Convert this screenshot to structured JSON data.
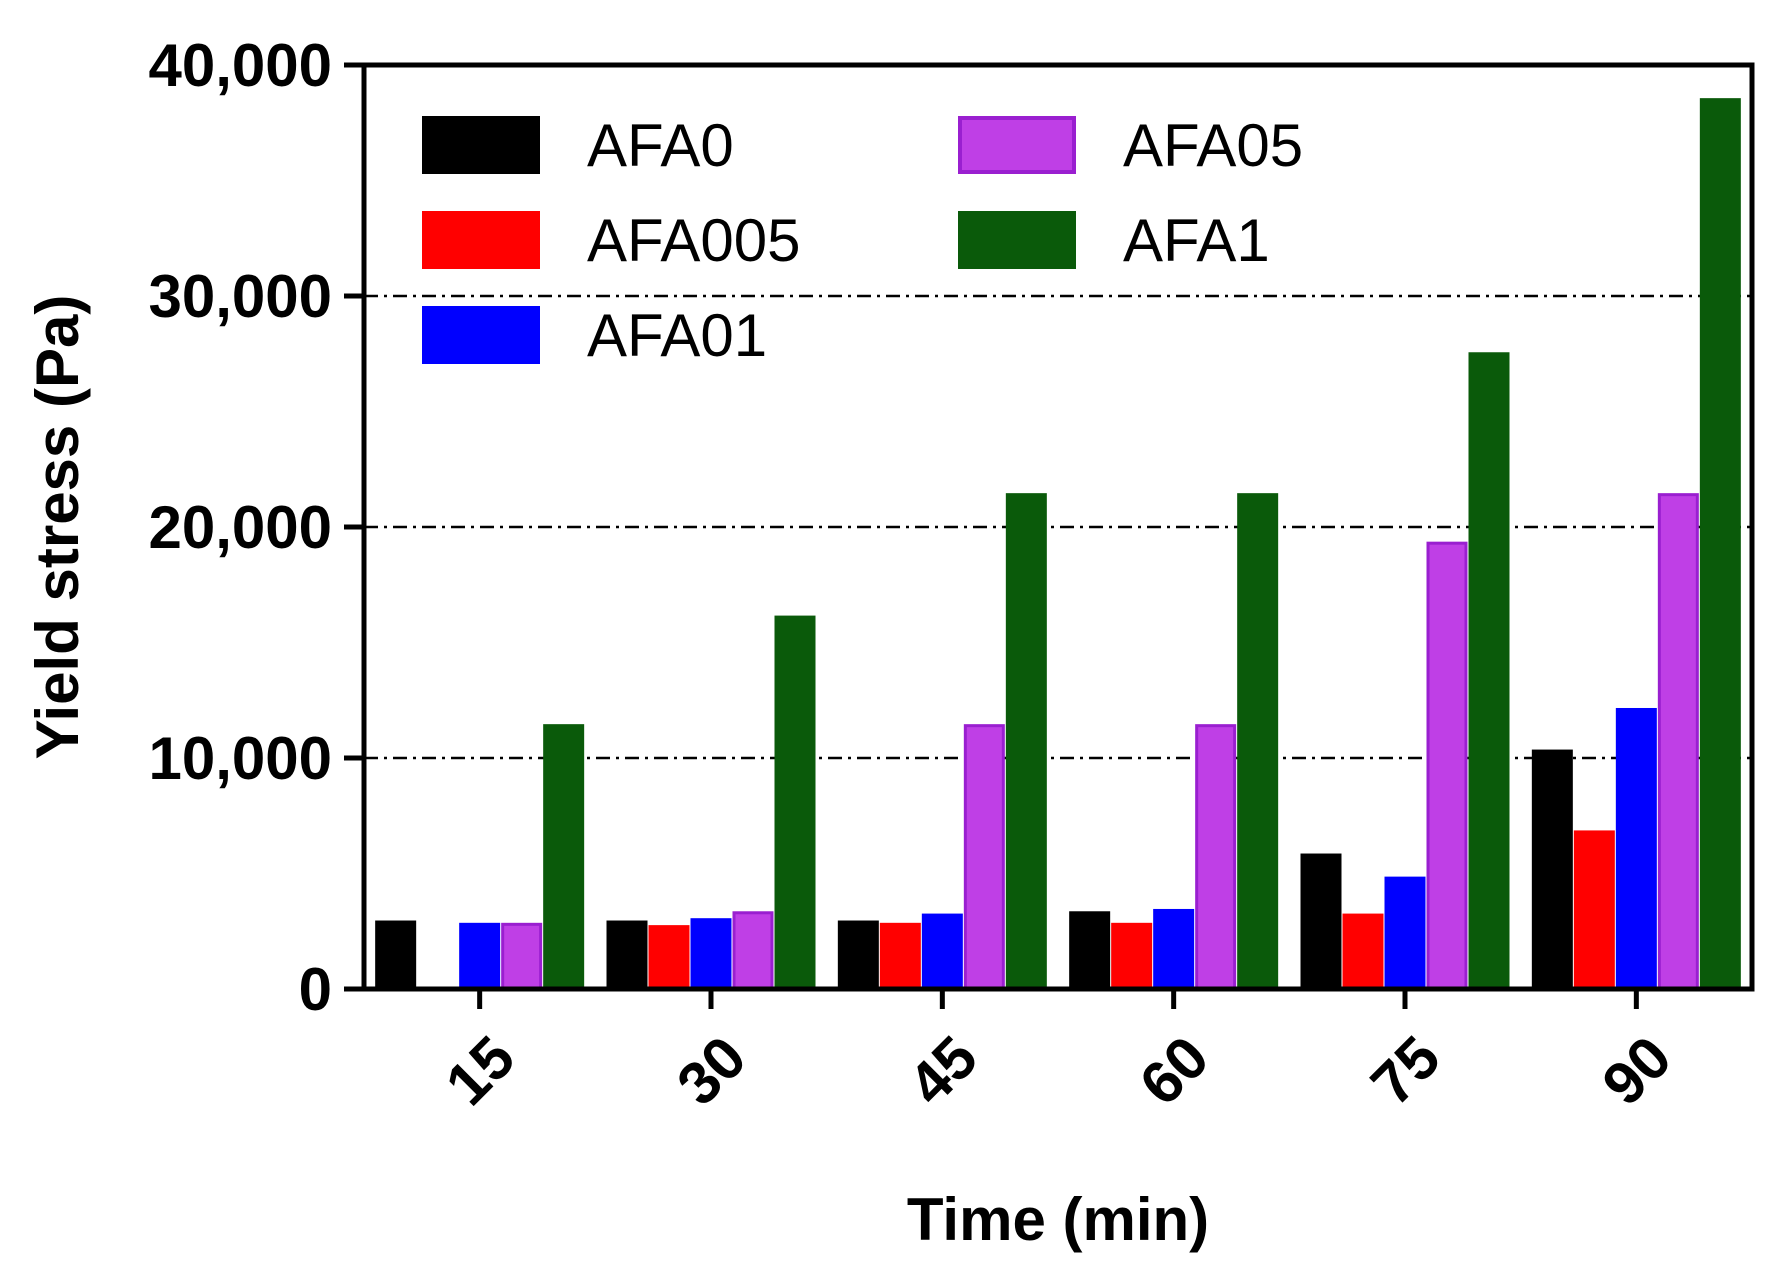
{
  "chart_data": {
    "type": "bar",
    "title": "",
    "xlabel": "Time (min)",
    "ylabel": "Yield stress (Pa)",
    "ylim": [
      0,
      40000
    ],
    "yticks": [
      0,
      10000,
      20000,
      30000,
      40000
    ],
    "ytick_labels": [
      "0",
      "10,000",
      "20,000",
      "30,000",
      "40,000"
    ],
    "gridlines": [
      10000,
      20000,
      30000
    ],
    "grid_style": "dash-dot horizontal",
    "categories": [
      "15",
      "30",
      "45",
      "60",
      "75",
      "90"
    ],
    "legend_position": "top-left",
    "series": [
      {
        "name": "AFA0",
        "color": "#000000",
        "stroke": "#000000",
        "values": [
          2900,
          2900,
          2900,
          3300,
          5800,
          10300
        ]
      },
      {
        "name": "AFA005",
        "color": "#ff0000",
        "stroke": "#ff0000",
        "values": [
          0,
          2700,
          2800,
          2800,
          3200,
          6800
        ]
      },
      {
        "name": "AFA01",
        "color": "#0000ff",
        "stroke": "#0000ff",
        "values": [
          2800,
          3000,
          3200,
          3400,
          4800,
          12100
        ]
      },
      {
        "name": "AFA05",
        "color": "#bf3fe6",
        "stroke": "#9a1fd0",
        "values": [
          2800,
          3300,
          11400,
          11400,
          19300,
          21400
        ]
      },
      {
        "name": "AFA1",
        "color": "#0a5a0a",
        "stroke": "#0a5a0a",
        "values": [
          11400,
          16100,
          21400,
          21400,
          27500,
          38500
        ]
      }
    ]
  }
}
